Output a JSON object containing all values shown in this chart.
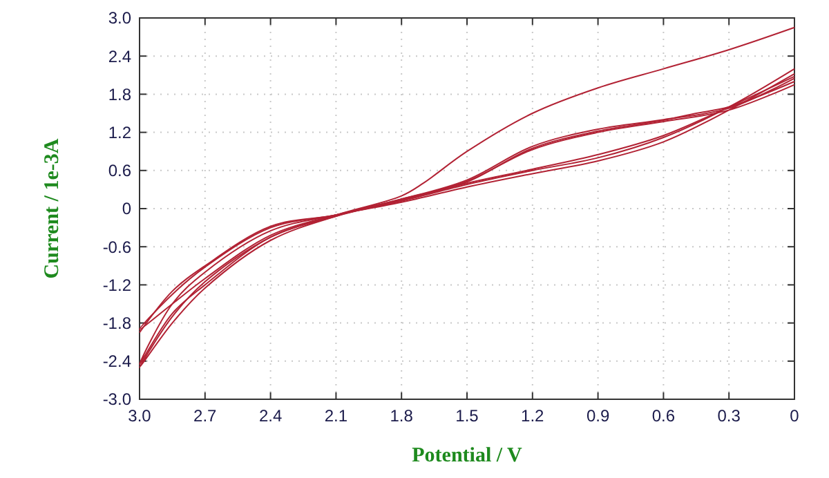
{
  "chart_data": {
    "type": "line",
    "xlabel": "Potential / V",
    "ylabel": "Current / 1e-3A",
    "xlim": [
      3.0,
      0
    ],
    "ylim": [
      -3.0,
      3.0
    ],
    "xticks": [
      {
        "value": 3,
        "label": "3.0"
      },
      2.7,
      2.4,
      2.1,
      1.8,
      1.5,
      1.2,
      0.9,
      0.6,
      0.3,
      0
    ],
    "yticks": [
      {
        "value": -3,
        "label": "-3.0"
      },
      -2.4,
      -1.8,
      -1.2,
      -0.6,
      0,
      0.6,
      1.2,
      1.8,
      2.4,
      {
        "value": 3,
        "label": "3.0"
      }
    ],
    "grid": true,
    "marker": "none",
    "line_style": "solid",
    "series": [
      {
        "color": "#b22234",
        "x": [
          0,
          0.3,
          0.6,
          0.9,
          1.2,
          1.5,
          1.7,
          1.8,
          2.1,
          2.4,
          2.7,
          2.85,
          3.0,
          2.85,
          2.7,
          2.4,
          2.1,
          1.8,
          1.5,
          1.2,
          0.9,
          0.6,
          0.45,
          0.3,
          0
        ],
        "values": [
          2.85,
          2.5,
          2.2,
          1.9,
          1.5,
          0.9,
          0.4,
          0.2,
          -0.1,
          -0.45,
          -1.15,
          -1.7,
          -2.5,
          -1.8,
          -1.25,
          -0.5,
          -0.12,
          0.15,
          0.42,
          0.95,
          1.22,
          1.39,
          1.5,
          1.6,
          2.0
        ]
      },
      {
        "color": "#b22234",
        "x": [
          0,
          0.3,
          0.6,
          0.9,
          1.2,
          1.5,
          1.8,
          2.1,
          2.4,
          2.7,
          2.85,
          3.0,
          2.85,
          2.7,
          2.4,
          2.1,
          1.8,
          1.5,
          1.2,
          0.9,
          0.6,
          0.3,
          0
        ],
        "values": [
          2.2,
          1.6,
          1.12,
          0.8,
          0.6,
          0.38,
          0.12,
          -0.1,
          -0.3,
          -0.92,
          -1.35,
          -1.9,
          -1.5,
          -1.1,
          -0.42,
          -0.1,
          0.15,
          0.45,
          0.98,
          1.25,
          1.4,
          1.58,
          2.05
        ]
      },
      {
        "color": "#b22234",
        "x": [
          0,
          0.3,
          0.6,
          0.9,
          1.2,
          1.5,
          1.8,
          2.1,
          2.4,
          2.7,
          2.85,
          3.0,
          2.85,
          2.7,
          2.4,
          2.1,
          1.8,
          1.5,
          1.2,
          0.9,
          0.6,
          0.3,
          0
        ],
        "values": [
          2.12,
          1.55,
          1.05,
          0.75,
          0.55,
          0.34,
          0.1,
          -0.1,
          -0.35,
          -1.0,
          -1.5,
          -2.45,
          -1.65,
          -1.2,
          -0.45,
          -0.12,
          0.14,
          0.43,
          0.93,
          1.2,
          1.37,
          1.55,
          1.95
        ]
      },
      {
        "color": "#b22234",
        "x": [
          0,
          0.3,
          0.6,
          0.9,
          1.2,
          1.5,
          1.8,
          2.1,
          2.4,
          2.7,
          2.85,
          3.0
        ],
        "values": [
          2.08,
          1.6,
          1.15,
          0.85,
          0.62,
          0.4,
          0.13,
          -0.1,
          -0.28,
          -0.9,
          -1.3,
          -1.95
        ]
      }
    ]
  }
}
